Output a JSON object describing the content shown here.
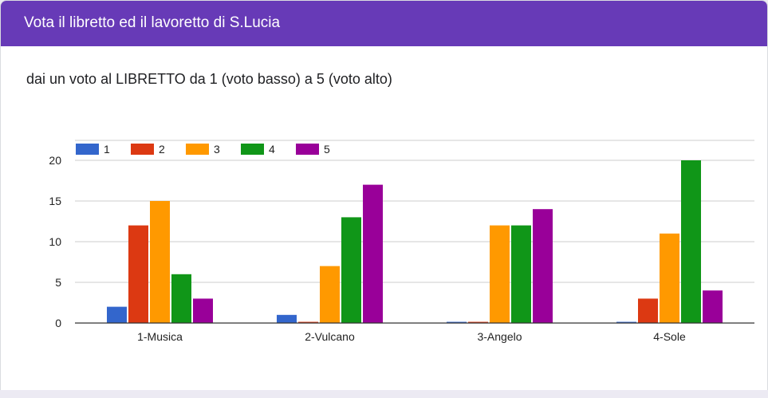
{
  "header": {
    "title": "Vota il libretto ed il lavoretto di S.Lucia"
  },
  "question": {
    "text": "dai un voto al LIBRETTO da 1 (voto basso) a 5 (voto alto)"
  },
  "colors": {
    "header_bg": "#673ab7",
    "grid": "#cccccc",
    "axis": "#333333"
  },
  "chart_data": {
    "type": "bar",
    "categories": [
      "1-Musica",
      "2-Vulcano",
      "3-Angelo",
      "4-Sole"
    ],
    "series": [
      {
        "name": "1",
        "color": "#3366cc",
        "values": [
          2,
          1,
          0,
          0
        ]
      },
      {
        "name": "2",
        "color": "#dc3912",
        "values": [
          12,
          0,
          0,
          3
        ]
      },
      {
        "name": "3",
        "color": "#ff9900",
        "values": [
          15,
          7,
          12,
          11
        ]
      },
      {
        "name": "4",
        "color": "#109618",
        "values": [
          6,
          13,
          12,
          20
        ]
      },
      {
        "name": "5",
        "color": "#990099",
        "values": [
          3,
          17,
          14,
          4
        ]
      }
    ],
    "ylim": [
      0,
      20
    ],
    "yticks": [
      0,
      5,
      10,
      15,
      20
    ],
    "grid": true,
    "legend_position": "top-left"
  }
}
